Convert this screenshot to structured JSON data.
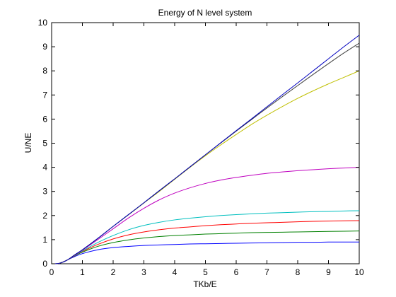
{
  "chart_data": {
    "type": "line",
    "title": "Energy of N level system",
    "xlabel": "TKb/E",
    "ylabel": "U/NE",
    "xlim": [
      0,
      10
    ],
    "ylim": [
      0,
      10
    ],
    "xticks": [
      "0",
      "1",
      "2",
      "3",
      "4",
      "5",
      "6",
      "7",
      "8",
      "9",
      "10"
    ],
    "yticks": [
      "0",
      "1",
      "2",
      "3",
      "4",
      "5",
      "6",
      "7",
      "8",
      "9",
      "10"
    ],
    "grid": false,
    "legend": "none",
    "x": [
      0,
      0.25,
      0.5,
      0.75,
      1,
      1.5,
      2,
      2.5,
      3,
      3.5,
      4,
      4.5,
      5,
      5.5,
      6,
      6.5,
      7,
      7.5,
      8,
      8.5,
      9,
      9.5,
      10
    ],
    "series": [
      {
        "color": "#0000ff",
        "values": [
          0,
          0.02,
          0.15,
          0.3,
          0.42,
          0.58,
          0.67,
          0.72,
          0.76,
          0.78,
          0.8,
          0.82,
          0.83,
          0.84,
          0.85,
          0.86,
          0.87,
          0.88,
          0.89,
          0.89,
          0.9,
          0.9,
          0.9
        ]
      },
      {
        "color": "#008000",
        "values": [
          0,
          0.02,
          0.15,
          0.33,
          0.48,
          0.72,
          0.88,
          0.99,
          1.07,
          1.13,
          1.17,
          1.2,
          1.23,
          1.25,
          1.27,
          1.29,
          1.3,
          1.31,
          1.32,
          1.33,
          1.34,
          1.35,
          1.36
        ]
      },
      {
        "color": "#ff0000",
        "values": [
          0,
          0.02,
          0.15,
          0.34,
          0.51,
          0.8,
          1.03,
          1.2,
          1.32,
          1.41,
          1.48,
          1.53,
          1.58,
          1.62,
          1.65,
          1.68,
          1.7,
          1.72,
          1.74,
          1.76,
          1.77,
          1.78,
          1.79
        ]
      },
      {
        "color": "#00bfbf",
        "values": [
          0,
          0.02,
          0.15,
          0.35,
          0.53,
          0.88,
          1.17,
          1.41,
          1.59,
          1.72,
          1.82,
          1.89,
          1.95,
          2.0,
          2.04,
          2.07,
          2.1,
          2.12,
          2.14,
          2.16,
          2.17,
          2.19,
          2.2
        ]
      },
      {
        "color": "#bf00bf",
        "values": [
          0,
          0.02,
          0.15,
          0.36,
          0.56,
          1.0,
          1.45,
          1.9,
          2.3,
          2.65,
          2.93,
          3.15,
          3.33,
          3.47,
          3.58,
          3.67,
          3.75,
          3.81,
          3.86,
          3.9,
          3.94,
          3.97,
          4.0
        ]
      },
      {
        "color": "#bfbf00",
        "values": [
          0,
          0.02,
          0.15,
          0.37,
          0.58,
          1.05,
          1.55,
          2.03,
          2.52,
          3.0,
          3.5,
          4.0,
          4.48,
          4.93,
          5.36,
          5.78,
          6.16,
          6.52,
          6.86,
          7.17,
          7.46,
          7.73,
          8.0
        ]
      },
      {
        "color": "#404040",
        "values": [
          0,
          0.02,
          0.15,
          0.37,
          0.58,
          1.05,
          1.55,
          2.04,
          2.53,
          3.03,
          3.52,
          4.02,
          4.52,
          5.01,
          5.5,
          5.98,
          6.46,
          6.93,
          7.39,
          7.85,
          8.3,
          8.74,
          9.15
        ]
      },
      {
        "color": "#0000bf",
        "values": [
          0,
          0.02,
          0.15,
          0.37,
          0.58,
          1.05,
          1.55,
          2.04,
          2.53,
          3.03,
          3.52,
          4.02,
          4.52,
          5.02,
          5.52,
          6.01,
          6.51,
          7.01,
          7.5,
          8.0,
          8.5,
          9.0,
          9.48
        ]
      }
    ]
  }
}
